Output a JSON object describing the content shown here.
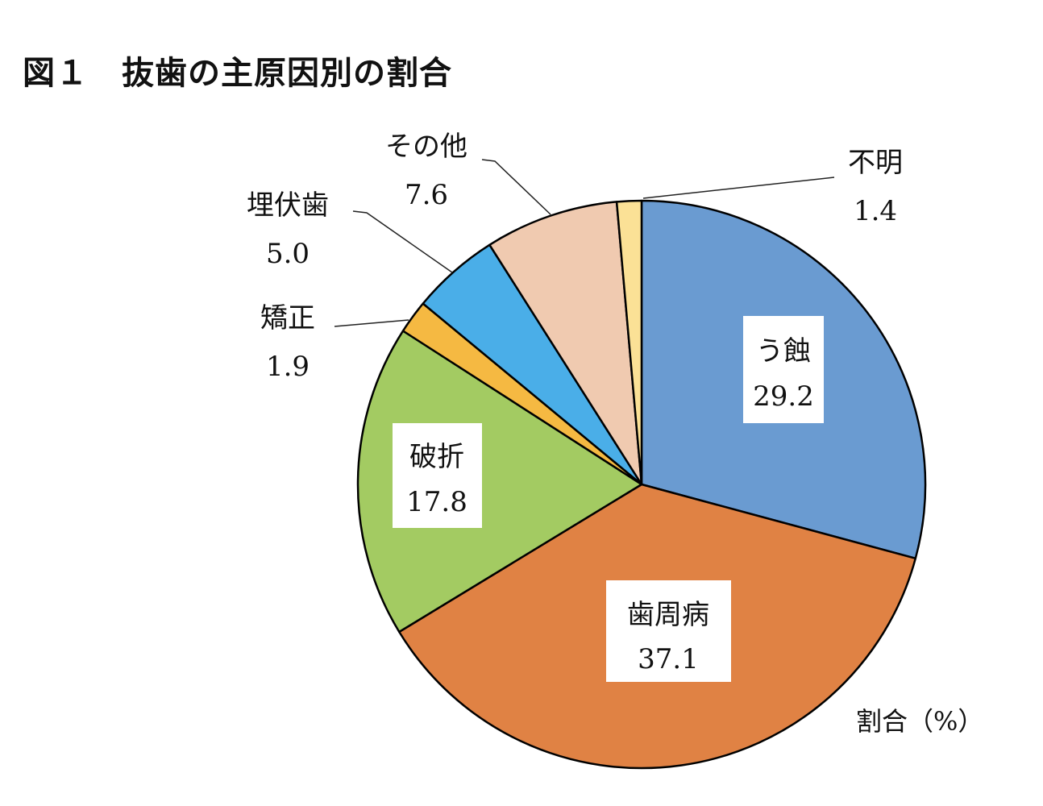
{
  "title": "図１　抜歯の主原因別の割合",
  "chart_data": {
    "type": "pie",
    "title": "図１　抜歯の主原因別の割合",
    "unit_label": "割合（%）",
    "start": "top",
    "direction": "clockwise",
    "slices": [
      {
        "label": "う蝕",
        "value": 29.2,
        "display": "29.2",
        "color": "#6a9bd1"
      },
      {
        "label": "歯周病",
        "value": 37.1,
        "display": "37.1",
        "color": "#e08244"
      },
      {
        "label": "破折",
        "value": 17.8,
        "display": "17.8",
        "color": "#a3cb62"
      },
      {
        "label": "矯正",
        "value": 1.9,
        "display": "1.9",
        "color": "#f5b942"
      },
      {
        "label": "埋伏歯",
        "value": 5.0,
        "display": "5.0",
        "color": "#4aaee8"
      },
      {
        "label": "その他",
        "value": 7.6,
        "display": "7.6",
        "color": "#f0cab0"
      },
      {
        "label": "不明",
        "value": 1.4,
        "display": "1.4",
        "color": "#fbe196"
      }
    ]
  }
}
